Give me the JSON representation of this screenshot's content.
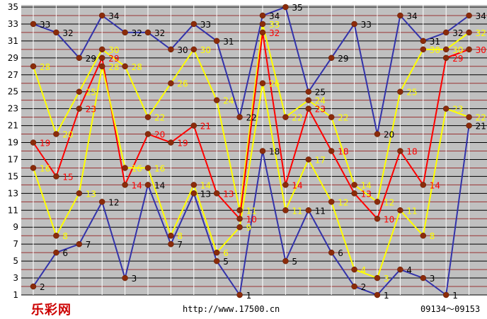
{
  "chart_data": {
    "type": "line",
    "x": [
      1,
      2,
      3,
      4,
      5,
      6,
      7,
      8,
      9,
      10,
      11,
      12,
      13,
      14,
      15,
      16,
      17,
      18,
      19,
      20
    ],
    "ylim": [
      1,
      35
    ],
    "yticks": [
      1,
      3,
      5,
      7,
      9,
      11,
      13,
      15,
      17,
      19,
      21,
      23,
      25,
      27,
      29,
      31,
      33,
      35
    ],
    "grid": true,
    "series": [
      {
        "color": "#3333aa",
        "label_color": "#000000",
        "values": [
          33,
          32,
          29,
          34,
          32,
          32,
          30,
          33,
          31,
          22,
          34,
          35,
          25,
          29,
          33,
          20,
          34,
          31,
          32,
          34
        ]
      },
      {
        "color": "#ffff00",
        "label_color": "#ffff00",
        "values": [
          28,
          20,
          25,
          30,
          28,
          22,
          26,
          30,
          24,
          11,
          33,
          22,
          24,
          22,
          14,
          12,
          25,
          30,
          30,
          32
        ]
      },
      {
        "color": "#ff0000",
        "label_color": "#ff0000",
        "values": [
          19,
          15,
          23,
          29,
          14,
          20,
          19,
          21,
          13,
          10,
          32,
          14,
          23,
          18,
          13,
          10,
          18,
          14,
          29,
          30
        ]
      },
      {
        "color": "#ffff00",
        "label_color": "#ffff00",
        "values": [
          16,
          8,
          13,
          28,
          16,
          16,
          8,
          14,
          6,
          9,
          26,
          11,
          17,
          12,
          4,
          3,
          11,
          8,
          23,
          22
        ]
      },
      {
        "color": "#3333aa",
        "label_color": "#000000",
        "values": [
          2,
          6,
          7,
          12,
          3,
          14,
          7,
          13,
          5,
          1,
          18,
          5,
          11,
          6,
          2,
          1,
          4,
          3,
          1,
          21
        ]
      }
    ]
  },
  "footer": {
    "logo": "乐彩网",
    "url": "http://www.17500.cn",
    "range": "09134～09153"
  }
}
